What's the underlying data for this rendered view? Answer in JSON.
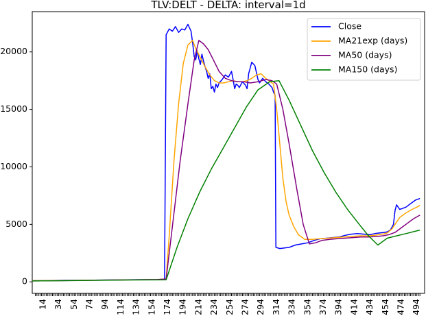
{
  "chart_data": {
    "type": "line",
    "title": "TLV:DELT - DELTA: interval=1d",
    "xlabel": "",
    "ylabel": "",
    "xlim": [
      0,
      504
    ],
    "ylim": [
      -1000,
      23500
    ],
    "x_tick_labels": [
      14,
      34,
      54,
      74,
      94,
      114,
      134,
      154,
      174,
      194,
      214,
      234,
      254,
      274,
      294,
      314,
      334,
      354,
      374,
      394,
      414,
      434,
      454,
      474,
      494
    ],
    "y_ticks": [
      0,
      5000,
      10000,
      15000,
      20000
    ],
    "y_tick_labels": [
      "0",
      "5000",
      "10000",
      "15000",
      "20000"
    ],
    "legend_position": "top-right",
    "grid": false,
    "series": [
      {
        "name": "Close",
        "color": "#0000ff",
        "points": [
          [
            0,
            100
          ],
          [
            20,
            110
          ],
          [
            40,
            130
          ],
          [
            60,
            140
          ],
          [
            80,
            150
          ],
          [
            100,
            170
          ],
          [
            120,
            180
          ],
          [
            140,
            190
          ],
          [
            160,
            200
          ],
          [
            170,
            210
          ],
          [
            172,
            21500
          ],
          [
            176,
            22000
          ],
          [
            180,
            21800
          ],
          [
            184,
            22200
          ],
          [
            188,
            21700
          ],
          [
            192,
            22000
          ],
          [
            196,
            21900
          ],
          [
            200,
            22400
          ],
          [
            204,
            21800
          ],
          [
            206,
            20800
          ],
          [
            208,
            19600
          ],
          [
            210,
            19300
          ],
          [
            212,
            20100
          ],
          [
            214,
            19400
          ],
          [
            216,
            18900
          ],
          [
            218,
            19800
          ],
          [
            220,
            19200
          ],
          [
            222,
            18700
          ],
          [
            224,
            18300
          ],
          [
            226,
            17700
          ],
          [
            228,
            18100
          ],
          [
            230,
            16800
          ],
          [
            232,
            17000
          ],
          [
            234,
            16500
          ],
          [
            236,
            17200
          ],
          [
            238,
            16900
          ],
          [
            240,
            17300
          ],
          [
            244,
            17600
          ],
          [
            248,
            18000
          ],
          [
            252,
            17800
          ],
          [
            256,
            18300
          ],
          [
            258,
            17600
          ],
          [
            260,
            16800
          ],
          [
            262,
            17200
          ],
          [
            264,
            17100
          ],
          [
            266,
            16900
          ],
          [
            270,
            17400
          ],
          [
            274,
            17100
          ],
          [
            276,
            16800
          ],
          [
            278,
            18100
          ],
          [
            282,
            19100
          ],
          [
            286,
            18800
          ],
          [
            290,
            17600
          ],
          [
            292,
            17300
          ],
          [
            296,
            17700
          ],
          [
            300,
            17400
          ],
          [
            304,
            17200
          ],
          [
            308,
            16900
          ],
          [
            310,
            16500
          ],
          [
            312,
            16200
          ],
          [
            313,
            3000
          ],
          [
            318,
            2900
          ],
          [
            324,
            2950
          ],
          [
            330,
            3000
          ],
          [
            338,
            3200
          ],
          [
            346,
            3300
          ],
          [
            354,
            3400
          ],
          [
            362,
            3600
          ],
          [
            370,
            3750
          ],
          [
            378,
            3800
          ],
          [
            386,
            3850
          ],
          [
            394,
            3900
          ],
          [
            402,
            4050
          ],
          [
            410,
            4150
          ],
          [
            418,
            4200
          ],
          [
            426,
            4150
          ],
          [
            434,
            4100
          ],
          [
            440,
            4200
          ],
          [
            446,
            4250
          ],
          [
            452,
            4300
          ],
          [
            456,
            4350
          ],
          [
            460,
            4500
          ],
          [
            464,
            5000
          ],
          [
            466,
            6200
          ],
          [
            468,
            6700
          ],
          [
            472,
            6300
          ],
          [
            476,
            6400
          ],
          [
            480,
            6500
          ],
          [
            484,
            6700
          ],
          [
            488,
            6900
          ],
          [
            492,
            7100
          ],
          [
            496,
            7200
          ],
          [
            498,
            7250
          ]
        ]
      },
      {
        "name": "MA21exp (days)",
        "color": "#ffa500",
        "points": [
          [
            0,
            100
          ],
          [
            40,
            120
          ],
          [
            80,
            150
          ],
          [
            120,
            170
          ],
          [
            160,
            200
          ],
          [
            172,
            250
          ],
          [
            176,
            4000
          ],
          [
            182,
            10500
          ],
          [
            188,
            15500
          ],
          [
            194,
            19000
          ],
          [
            200,
            20600
          ],
          [
            206,
            21000
          ],
          [
            210,
            20300
          ],
          [
            216,
            19500
          ],
          [
            222,
            18700
          ],
          [
            228,
            18000
          ],
          [
            234,
            17500
          ],
          [
            240,
            17300
          ],
          [
            246,
            17300
          ],
          [
            252,
            17400
          ],
          [
            258,
            17500
          ],
          [
            264,
            17400
          ],
          [
            270,
            17400
          ],
          [
            276,
            17500
          ],
          [
            282,
            17700
          ],
          [
            288,
            18000
          ],
          [
            294,
            18100
          ],
          [
            300,
            17700
          ],
          [
            306,
            17400
          ],
          [
            310,
            17200
          ],
          [
            314,
            15000
          ],
          [
            318,
            12000
          ],
          [
            322,
            9000
          ],
          [
            326,
            7000
          ],
          [
            330,
            5800
          ],
          [
            336,
            4800
          ],
          [
            342,
            4100
          ],
          [
            350,
            3700
          ],
          [
            360,
            3700
          ],
          [
            370,
            3750
          ],
          [
            380,
            3800
          ],
          [
            390,
            3850
          ],
          [
            400,
            3900
          ],
          [
            410,
            3950
          ],
          [
            420,
            4000
          ],
          [
            430,
            4000
          ],
          [
            440,
            4050
          ],
          [
            450,
            4150
          ],
          [
            456,
            4250
          ],
          [
            462,
            4600
          ],
          [
            466,
            5000
          ],
          [
            472,
            5600
          ],
          [
            480,
            6000
          ],
          [
            488,
            6300
          ],
          [
            494,
            6500
          ],
          [
            498,
            6650
          ]
        ]
      },
      {
        "name": "MA50 (days)",
        "color": "#800080",
        "points": [
          [
            0,
            80
          ],
          [
            40,
            110
          ],
          [
            80,
            140
          ],
          [
            120,
            170
          ],
          [
            160,
            200
          ],
          [
            172,
            250
          ],
          [
            180,
            4800
          ],
          [
            190,
            10500
          ],
          [
            200,
            15500
          ],
          [
            208,
            19300
          ],
          [
            214,
            21000
          ],
          [
            220,
            20700
          ],
          [
            226,
            20200
          ],
          [
            232,
            19400
          ],
          [
            240,
            18300
          ],
          [
            248,
            17700
          ],
          [
            256,
            17500
          ],
          [
            264,
            17400
          ],
          [
            272,
            17400
          ],
          [
            280,
            17300
          ],
          [
            290,
            17400
          ],
          [
            300,
            17600
          ],
          [
            308,
            17500
          ],
          [
            314,
            17200
          ],
          [
            322,
            15000
          ],
          [
            330,
            12000
          ],
          [
            340,
            8000
          ],
          [
            348,
            5000
          ],
          [
            356,
            3300
          ],
          [
            364,
            3400
          ],
          [
            372,
            3600
          ],
          [
            382,
            3700
          ],
          [
            392,
            3750
          ],
          [
            402,
            3800
          ],
          [
            412,
            3850
          ],
          [
            422,
            3900
          ],
          [
            432,
            3900
          ],
          [
            442,
            3950
          ],
          [
            450,
            4000
          ],
          [
            458,
            4100
          ],
          [
            466,
            4300
          ],
          [
            474,
            4700
          ],
          [
            482,
            5100
          ],
          [
            490,
            5500
          ],
          [
            498,
            5800
          ]
        ]
      },
      {
        "name": "MA150 (days)",
        "color": "#008000",
        "points": [
          [
            0,
            80
          ],
          [
            40,
            100
          ],
          [
            80,
            130
          ],
          [
            120,
            160
          ],
          [
            172,
            180
          ],
          [
            186,
            3000
          ],
          [
            200,
            5500
          ],
          [
            215,
            7800
          ],
          [
            230,
            9800
          ],
          [
            245,
            11600
          ],
          [
            260,
            13400
          ],
          [
            275,
            15200
          ],
          [
            290,
            16700
          ],
          [
            305,
            17400
          ],
          [
            317,
            17500
          ],
          [
            330,
            15800
          ],
          [
            345,
            13600
          ],
          [
            360,
            11400
          ],
          [
            375,
            9500
          ],
          [
            390,
            7800
          ],
          [
            405,
            6300
          ],
          [
            420,
            5000
          ],
          [
            432,
            4000
          ],
          [
            444,
            3200
          ],
          [
            456,
            3800
          ],
          [
            468,
            4000
          ],
          [
            480,
            4200
          ],
          [
            492,
            4400
          ],
          [
            498,
            4500
          ]
        ]
      }
    ]
  }
}
